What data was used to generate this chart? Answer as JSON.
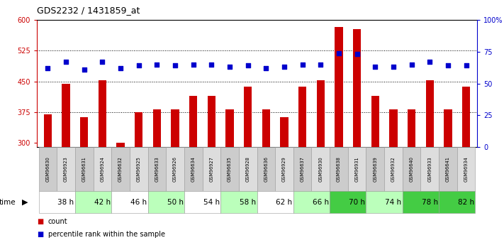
{
  "title": "GDS2232 / 1431859_at",
  "samples": [
    "GSM96630",
    "GSM96923",
    "GSM96631",
    "GSM96924",
    "GSM96632",
    "GSM96925",
    "GSM96633",
    "GSM96926",
    "GSM96634",
    "GSM96927",
    "GSM96635",
    "GSM96928",
    "GSM96636",
    "GSM96929",
    "GSM96637",
    "GSM96930",
    "GSM96638",
    "GSM96931",
    "GSM96639",
    "GSM96932",
    "GSM96640",
    "GSM96933",
    "GSM96641",
    "GSM96934"
  ],
  "counts": [
    370,
    445,
    362,
    452,
    300,
    375,
    382,
    382,
    415,
    415,
    382,
    437,
    382,
    362,
    437,
    452,
    582,
    578,
    415,
    382,
    382,
    452,
    382,
    437
  ],
  "percentile_ranks": [
    62,
    67,
    61,
    67,
    62,
    64,
    65,
    64,
    65,
    65,
    63,
    64,
    62,
    63,
    65,
    65,
    74,
    73,
    63,
    63,
    65,
    67,
    64,
    64
  ],
  "time_groups": [
    {
      "label": "38 h",
      "start": 0,
      "end": 2,
      "color": "#ffffff"
    },
    {
      "label": "42 h",
      "start": 2,
      "end": 4,
      "color": "#bbffbb"
    },
    {
      "label": "46 h",
      "start": 4,
      "end": 6,
      "color": "#ffffff"
    },
    {
      "label": "50 h",
      "start": 6,
      "end": 8,
      "color": "#bbffbb"
    },
    {
      "label": "54 h",
      "start": 8,
      "end": 10,
      "color": "#ffffff"
    },
    {
      "label": "58 h",
      "start": 10,
      "end": 12,
      "color": "#bbffbb"
    },
    {
      "label": "62 h",
      "start": 12,
      "end": 14,
      "color": "#ffffff"
    },
    {
      "label": "66 h",
      "start": 14,
      "end": 16,
      "color": "#bbffbb"
    },
    {
      "label": "70 h",
      "start": 16,
      "end": 18,
      "color": "#44cc44"
    },
    {
      "label": "74 h",
      "start": 18,
      "end": 20,
      "color": "#bbffbb"
    },
    {
      "label": "78 h",
      "start": 20,
      "end": 22,
      "color": "#44cc44"
    },
    {
      "label": "82 h",
      "start": 22,
      "end": 24,
      "color": "#44cc44"
    }
  ],
  "bar_color": "#cc0000",
  "dot_color": "#0000cc",
  "ylim_left": [
    290,
    600
  ],
  "ylim_right": [
    0,
    100
  ],
  "yticks_left": [
    300,
    375,
    450,
    525,
    600
  ],
  "yticks_right": [
    0,
    25,
    50,
    75,
    100
  ],
  "grid_values": [
    375,
    450,
    525
  ],
  "sample_bg_even": "#cccccc",
  "sample_bg_odd": "#dddddd"
}
